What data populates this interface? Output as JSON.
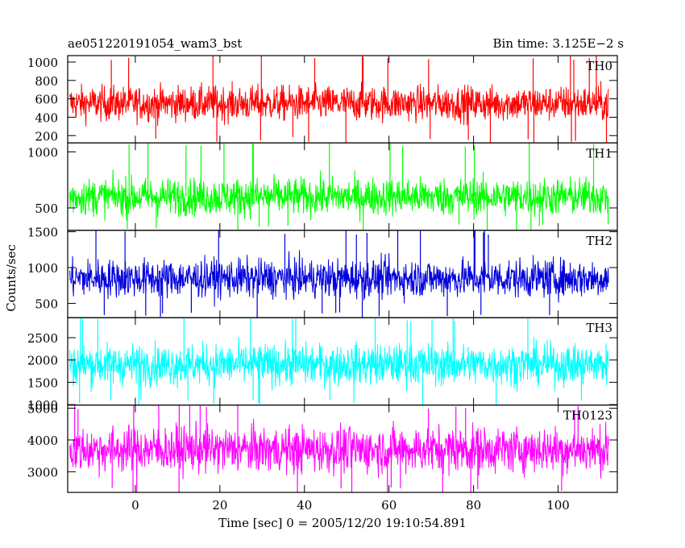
{
  "header": {
    "left_title": "ae051220191054_wam3_bst",
    "right_title": "Bin time: 3.125E−2 s"
  },
  "axes": {
    "xlabel": "Time [sec] 0 = 2005/12/20 19:10:54.891",
    "ylabel": "Counts/sec"
  },
  "chart_data": {
    "type": "line",
    "x_range": [
      -16,
      114
    ],
    "data_x_range": [
      -15.5,
      112
    ],
    "bin_time_s": 0.03125,
    "x_ticks": [
      0,
      20,
      40,
      60,
      80,
      100
    ],
    "grid": false,
    "panels": [
      {
        "name": "TH0",
        "color": "#ff0000",
        "ylim": [
          120,
          1070
        ],
        "y_ticks": [
          200,
          400,
          600,
          800,
          1000
        ],
        "typical_range": [
          300,
          800
        ],
        "mean": 550,
        "extremes": [
          150,
          1060
        ]
      },
      {
        "name": "TH1",
        "color": "#00ff00",
        "ylim": [
          300,
          1080
        ],
        "y_ticks": [
          500,
          1000
        ],
        "typical_range": [
          380,
          820
        ],
        "mean": 600,
        "extremes": [
          320,
          1075
        ]
      },
      {
        "name": "TH2",
        "color": "#0000dd",
        "ylim": [
          300,
          1520
        ],
        "y_ticks": [
          500,
          1000,
          1500
        ],
        "typical_range": [
          500,
          1200
        ],
        "mean": 850,
        "extremes": [
          330,
          1510
        ]
      },
      {
        "name": "TH3",
        "color": "#00ffff",
        "ylim": [
          990,
          2950
        ],
        "y_ticks": [
          1000,
          1500,
          2000,
          2500
        ],
        "typical_range": [
          1300,
          2500
        ],
        "mean": 1900,
        "extremes": [
          1050,
          2940
        ]
      },
      {
        "name": "TH0123",
        "color": "#ff00ff",
        "ylim": [
          2350,
          5100
        ],
        "y_ticks": [
          3000,
          4000,
          5000
        ],
        "typical_range": [
          2750,
          4650
        ],
        "mean": 3700,
        "extremes": [
          2400,
          5080
        ]
      }
    ]
  }
}
